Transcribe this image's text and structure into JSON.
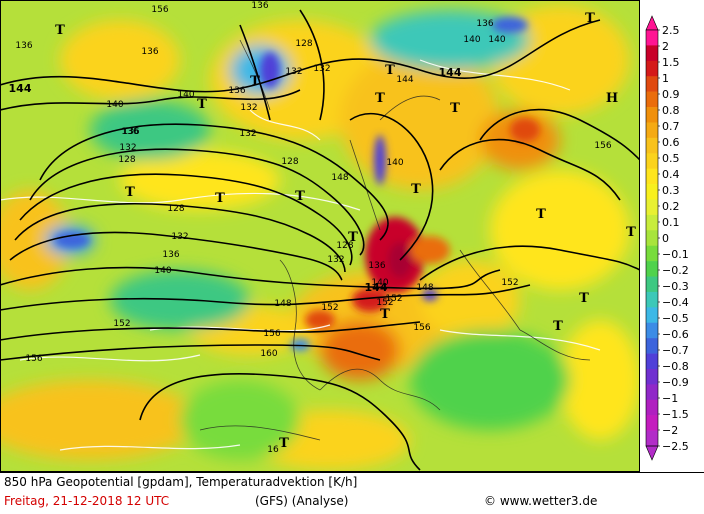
{
  "footer": {
    "title": "850 hPa Geopotential [gpdam], Temperaturadvektion [K/h]",
    "date": "Freitag, 21-12-2018  12 UTC",
    "model": "(GFS)  (Analyse)",
    "copyright": "© www.wetter3.de"
  },
  "colorbar": {
    "labels": [
      "2.5",
      "2",
      "1.5",
      "1",
      "0.9",
      "0.8",
      "0.7",
      "0.6",
      "0.5",
      "0.4",
      "0.3",
      "0.2",
      "0.1",
      "0",
      "−0.1",
      "−0.2",
      "−0.3",
      "−0.4",
      "−0.5",
      "−0.6",
      "−0.7",
      "−0.8",
      "−0.9",
      "−1",
      "−1.5",
      "−2",
      "−2.5"
    ],
    "colors": [
      "#ff1493",
      "#c8002a",
      "#d41a1a",
      "#e04a10",
      "#ea6d0c",
      "#f0900c",
      "#f5aa14",
      "#f8c21c",
      "#fbd31c",
      "#ffe51e",
      "#f8f01e",
      "#e8f032",
      "#c8ec3c",
      "#a8e43c",
      "#78dc3c",
      "#50d24c",
      "#3ec882",
      "#3cc8b8",
      "#3cb8e6",
      "#3c8ce6",
      "#3c64dc",
      "#5040d8",
      "#7030d0",
      "#9028c8",
      "#b020c0",
      "#c41cbe",
      "#b22cc8"
    ]
  },
  "contour_labels": [
    {
      "text": "136"
    },
    {
      "text": "144"
    },
    {
      "text": "140"
    },
    {
      "text": "136"
    },
    {
      "text": "132"
    },
    {
      "text": "128"
    },
    {
      "text": "128"
    },
    {
      "text": "132"
    },
    {
      "text": "136"
    },
    {
      "text": "140"
    },
    {
      "text": "144"
    },
    {
      "text": "148"
    },
    {
      "text": "152"
    },
    {
      "text": "156"
    },
    {
      "text": "160"
    },
    {
      "text": "156"
    },
    {
      "text": "152"
    },
    {
      "text": "148"
    },
    {
      "text": "132"
    },
    {
      "text": "136"
    },
    {
      "text": "128"
    },
    {
      "text": "136"
    },
    {
      "text": "140"
    },
    {
      "text": "144"
    },
    {
      "text": "132"
    },
    {
      "text": "136"
    },
    {
      "text": "140"
    },
    {
      "text": "156"
    },
    {
      "text": "148"
    },
    {
      "text": "152"
    },
    {
      "text": "132"
    },
    {
      "text": "128"
    },
    {
      "text": "136"
    },
    {
      "text": "136"
    },
    {
      "text": "140"
    },
    {
      "text": "140"
    },
    {
      "text": "144"
    },
    {
      "text": "152"
    },
    {
      "text": "156"
    },
    {
      "text": "132"
    },
    {
      "text": "136"
    },
    {
      "text": "132"
    },
    {
      "text": "128"
    },
    {
      "text": "156"
    },
    {
      "text": "140"
    },
    {
      "text": "152"
    },
    {
      "text": "16"
    }
  ],
  "pressure_labels": [
    {
      "text": "T"
    },
    {
      "text": "T"
    },
    {
      "text": "T"
    },
    {
      "text": "T"
    },
    {
      "text": "T"
    },
    {
      "text": "T"
    },
    {
      "text": "T"
    },
    {
      "text": "T"
    },
    {
      "text": "T"
    },
    {
      "text": "T"
    },
    {
      "text": "T"
    },
    {
      "text": "T"
    },
    {
      "text": "T"
    },
    {
      "text": "T"
    },
    {
      "text": "T"
    },
    {
      "text": "T"
    },
    {
      "text": "T"
    },
    {
      "text": "H"
    },
    {
      "text": "T"
    }
  ]
}
